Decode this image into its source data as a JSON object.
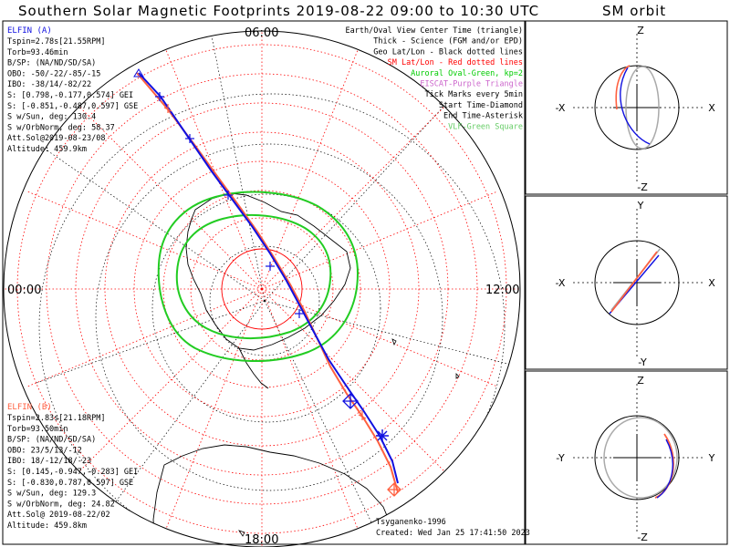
{
  "title": "Southern Solar Magnetic Footprints 2019-08-22 09:00 to 10:30 UTC",
  "orbit_title": "SM orbit",
  "time_labels": {
    "top": "06:00",
    "left": "00:00",
    "right": "12:00",
    "bottom": "18:00"
  },
  "elfin_a": {
    "name": "ELFIN (A)",
    "lines": [
      "Tspin=2.78s[21.55RPM]",
      "Torb=93.46min",
      "B/SP: (NA/ND/SD/SA)",
      "OBO: -50/-22/-85/-15",
      "IBO: -38/14/-82/22",
      "S: [0.798,-0.177,0.574] GEI",
      "S: [-0.851,-0.487,0.597] GSE",
      "S w/Sun, deg: 130.4",
      "S w/OrbNorm, deg: 58.37",
      "Att.Sol@2019-08-23/08",
      "Altitude: 459.9km"
    ]
  },
  "elfin_b": {
    "name": "ELFIN (B)",
    "lines": [
      "Tspin=2.83s[21.18RPM]",
      "Torb=93.50min",
      "B/SP: (NA/ND/SD/SA)",
      "OBO: 23/5/13/-12",
      "IBO: 18/-12/18/-23",
      "S: [0.145,-0.947,-0.283] GEI",
      "S: [-0.830,0.787,0.597] GSE",
      "S w/Sun, deg: 129.3",
      "S w/OrbNorm, deg: 24.82",
      "Att.Sol@ 2019-08-22/02",
      "Altitude: 459.8km"
    ]
  },
  "legend": [
    {
      "text": "Earth/Oval View Center Time (triangle)",
      "color": "#000000"
    },
    {
      "text": "Thick - Science (FGM and/or EPD)",
      "color": "#000000"
    },
    {
      "text": "Geo Lat/Lon - Black dotted lines",
      "color": "#000000"
    },
    {
      "text": "SM Lat/Lon - Red dotted lines",
      "color": "#ff0000"
    },
    {
      "text": "Auroral Oval-Green, kp=2",
      "color": "#00cc00"
    },
    {
      "text": "EISCAT-Purple Triangle",
      "color": "#cc66cc"
    },
    {
      "text": "Tick Marks every 5min",
      "color": "#000000"
    },
    {
      "text": "Start Time-Diamond",
      "color": "#000000"
    },
    {
      "text": "End Time-Asterisk",
      "color": "#000000"
    },
    {
      "text": "VLF-Green Square",
      "color": "#66cc66"
    }
  ],
  "credit": "Tsyganenko-1996",
  "created": "Created: Wed Jan 25 17:41:50 2023",
  "orbit_panels": [
    {
      "top": "Z",
      "bottom": "-Z",
      "left": "-X",
      "right": "X"
    },
    {
      "top": "Y",
      "bottom": "-Y",
      "left": "-X",
      "right": "X"
    },
    {
      "top": "Z",
      "bottom": "-Z",
      "left": "-Y",
      "right": "Y"
    }
  ],
  "colors": {
    "elfin_a": "#1010e0",
    "elfin_b": "#ff6040",
    "sm_grid": "#ff0000",
    "oval": "#22cc22",
    "land": "#000000"
  }
}
